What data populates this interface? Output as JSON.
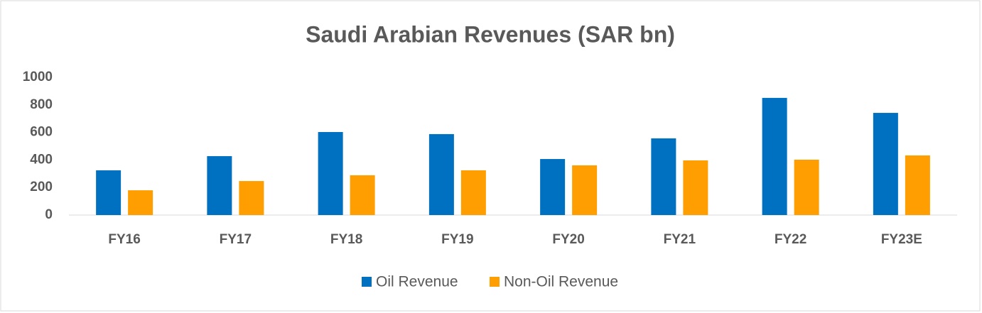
{
  "chart_data": {
    "type": "bar",
    "title": "Saudi Arabian Revenues (SAR bn)",
    "categories": [
      "FY16",
      "FY17",
      "FY18",
      "FY19",
      "FY20",
      "FY21",
      "FY22",
      "FY23E"
    ],
    "series": [
      {
        "name": "Oil Revenue",
        "color": "#0070c0",
        "values": [
          325,
          428,
          603,
          588,
          407,
          557,
          851,
          742
        ]
      },
      {
        "name": "Non-Oil Revenue",
        "color": "#ff9e00",
        "values": [
          180,
          247,
          289,
          325,
          361,
          397,
          402,
          433
        ]
      }
    ],
    "ylim": [
      0,
      1000
    ],
    "yticks": [
      0,
      200,
      400,
      600,
      800,
      1000
    ],
    "grid": false,
    "legend": "bottom"
  }
}
